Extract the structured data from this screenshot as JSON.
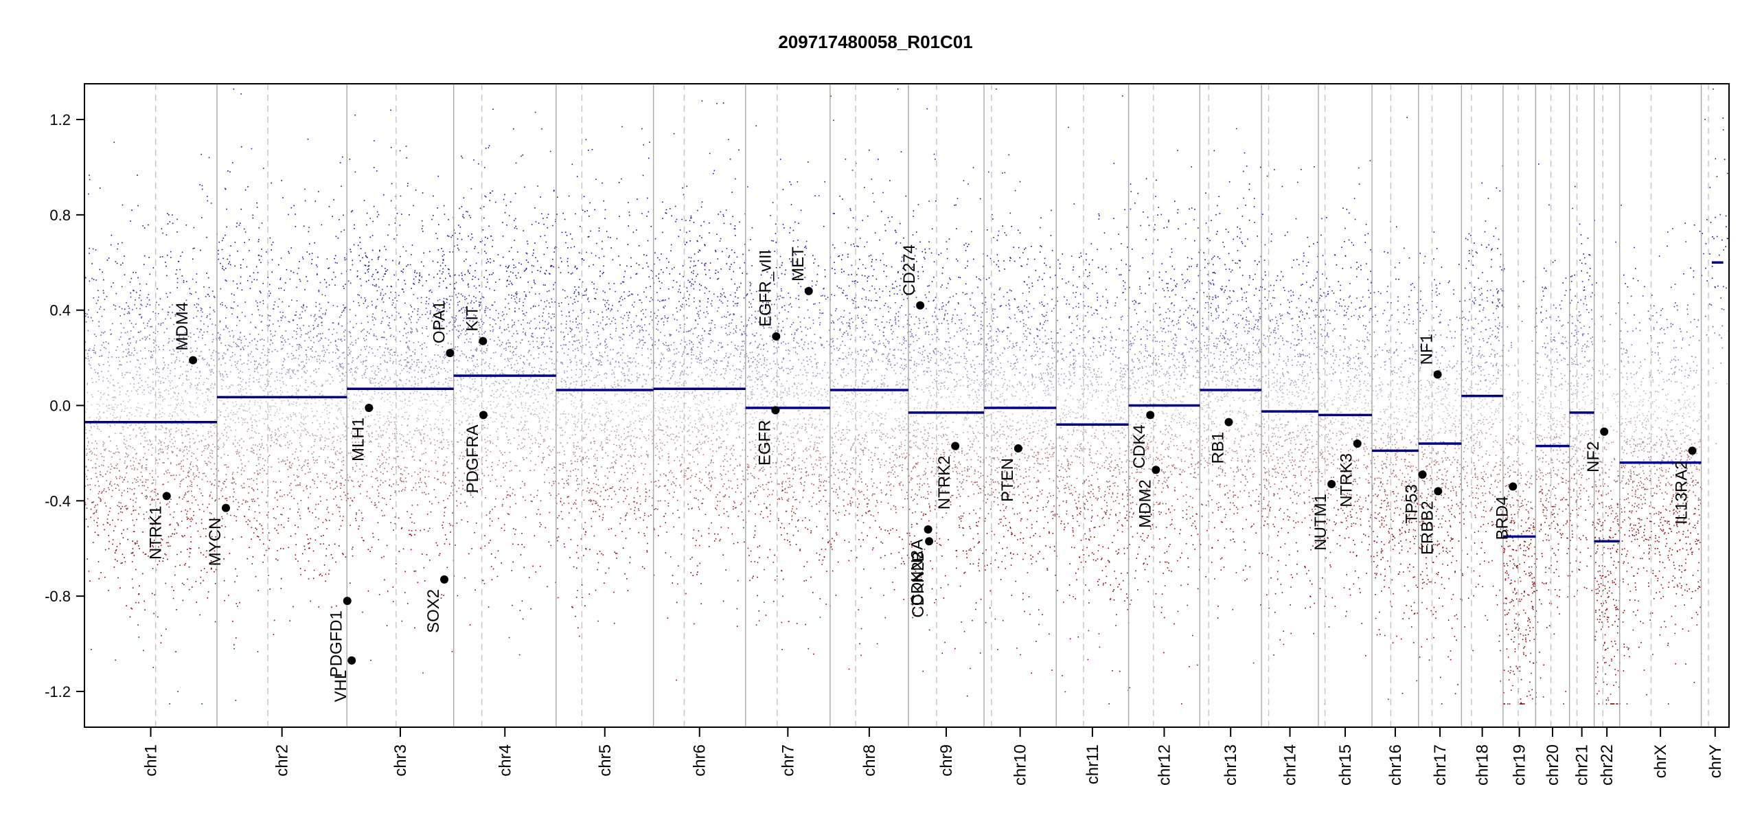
{
  "chart_data": {
    "type": "scatter",
    "title": "209717480058_R01C01",
    "xlabel": "",
    "ylabel": "",
    "ylim": [
      -1.35,
      1.35
    ],
    "yticks": [
      -1.2,
      -0.8,
      -0.4,
      0.0,
      0.4,
      0.8,
      1.2
    ],
    "ytick_labels": [
      "-1.2",
      "-0.8",
      "-0.4",
      "0.0",
      "0.4",
      "0.8",
      "1.2"
    ],
    "genome_length": 1000,
    "colors": {
      "gain": "#1010a0",
      "loss": "#8b0000",
      "neutral": "#c8c8c8",
      "segment": "#00008b",
      "boundary": "#a8a8a8",
      "centromere": "#c4c4c4",
      "axis": "#000000"
    },
    "chromosomes": [
      {
        "name": "chr1",
        "start": 0,
        "end": 80.6,
        "centromere": 43.3,
        "segments": [
          {
            "start": 0,
            "end": 80.6,
            "value": -0.07
          }
        ]
      },
      {
        "name": "chr2",
        "start": 80.6,
        "end": 159.6,
        "centromere": 111.5,
        "segments": [
          {
            "start": 80.6,
            "end": 159.6,
            "value": 0.035
          }
        ]
      },
      {
        "name": "chr3",
        "start": 159.6,
        "end": 224.5,
        "centromere": 189.5,
        "segments": [
          {
            "start": 159.6,
            "end": 224.5,
            "value": 0.07
          }
        ]
      },
      {
        "name": "chr4",
        "start": 224.5,
        "end": 286.8,
        "centromere": 241.6,
        "segments": [
          {
            "start": 224.5,
            "end": 286.8,
            "value": 0.125
          }
        ]
      },
      {
        "name": "chr5",
        "start": 286.8,
        "end": 346.0,
        "centromere": 302.5,
        "segments": [
          {
            "start": 286.8,
            "end": 346.0,
            "value": 0.065
          }
        ]
      },
      {
        "name": "chr6",
        "start": 346.0,
        "end": 402.0,
        "centromere": 364.7,
        "segments": [
          {
            "start": 346.0,
            "end": 402.0,
            "value": 0.07
          }
        ]
      },
      {
        "name": "chr7",
        "start": 402.0,
        "end": 453.4,
        "centromere": 421.2,
        "segments": [
          {
            "start": 402.0,
            "end": 453.4,
            "value": -0.01
          }
        ]
      },
      {
        "name": "chr8",
        "start": 453.4,
        "end": 501.0,
        "centromere": 468.9,
        "segments": [
          {
            "start": 453.4,
            "end": 501.0,
            "value": 0.065
          }
        ]
      },
      {
        "name": "chr9",
        "start": 501.0,
        "end": 547.0,
        "centromere": 518.1,
        "segments": [
          {
            "start": 501.0,
            "end": 547.0,
            "value": -0.03
          }
        ]
      },
      {
        "name": "chr10",
        "start": 547.0,
        "end": 590.9,
        "centromere": 551.5,
        "segments": [
          {
            "start": 547.0,
            "end": 590.9,
            "value": -0.01
          }
        ]
      },
      {
        "name": "chr11",
        "start": 590.9,
        "end": 634.9,
        "centromere": 607.5,
        "segments": [
          {
            "start": 590.9,
            "end": 634.9,
            "value": -0.08
          }
        ]
      },
      {
        "name": "chr12",
        "start": 634.9,
        "end": 678.2,
        "centromere": 650.0,
        "segments": [
          {
            "start": 634.9,
            "end": 678.2,
            "value": 0.0
          }
        ]
      },
      {
        "name": "chr13",
        "start": 678.2,
        "end": 715.7,
        "centromere": 683.6,
        "segments": [
          {
            "start": 678.2,
            "end": 715.7,
            "value": 0.065
          }
        ]
      },
      {
        "name": "chr14",
        "start": 715.7,
        "end": 750.3,
        "centromere": 720.1,
        "segments": [
          {
            "start": 715.7,
            "end": 750.3,
            "value": -0.025
          }
        ]
      },
      {
        "name": "chr15",
        "start": 750.3,
        "end": 782.9,
        "centromere": 754.3,
        "segments": [
          {
            "start": 750.3,
            "end": 782.9,
            "value": -0.04
          }
        ]
      },
      {
        "name": "chr16",
        "start": 782.9,
        "end": 811.2,
        "centromere": 794.3,
        "segments": [
          {
            "start": 782.9,
            "end": 811.2,
            "value": -0.19
          }
        ]
      },
      {
        "name": "chr17",
        "start": 811.2,
        "end": 837.3,
        "centromere": 819.4,
        "segments": [
          {
            "start": 811.2,
            "end": 837.3,
            "value": -0.16
          }
        ]
      },
      {
        "name": "chr18",
        "start": 837.3,
        "end": 862.6,
        "centromere": 843.4,
        "segments": [
          {
            "start": 837.3,
            "end": 862.6,
            "value": 0.04
          }
        ]
      },
      {
        "name": "chr19",
        "start": 862.6,
        "end": 882.4,
        "centromere": 871.8,
        "segments": [
          {
            "start": 862.6,
            "end": 870.6,
            "value": -0.55
          },
          {
            "start": 870.6,
            "end": 882.4,
            "value": -0.55
          }
        ]
      },
      {
        "name": "chr20",
        "start": 882.4,
        "end": 903.0,
        "centromere": 891.7,
        "segments": [
          {
            "start": 882.4,
            "end": 903.0,
            "value": -0.17
          }
        ]
      },
      {
        "name": "chr21",
        "start": 903.0,
        "end": 918.0,
        "centromere": 907.5,
        "segments": [
          {
            "start": 903.0,
            "end": 918.0,
            "value": -0.03
          }
        ]
      },
      {
        "name": "chr22",
        "start": 918.0,
        "end": 933.5,
        "centromere": 923.3,
        "segments": [
          {
            "start": 918.0,
            "end": 922.0,
            "value": -0.57
          },
          {
            "start": 922.0,
            "end": 933.5,
            "value": -0.57
          }
        ]
      },
      {
        "name": "chrX",
        "start": 933.5,
        "end": 983.1,
        "centromere": 952.6,
        "segments": [
          {
            "start": 933.5,
            "end": 983.1,
            "value": -0.24
          }
        ]
      },
      {
        "name": "chrY",
        "start": 983.1,
        "end": 1000.0,
        "centromere": 987.5,
        "segments": [
          {
            "start": 989.5,
            "end": 996.5,
            "value": 0.6
          }
        ]
      }
    ],
    "genes": [
      {
        "name": "NTRK1",
        "pos": 50.0,
        "value": -0.38
      },
      {
        "name": "MDM4",
        "pos": 66.0,
        "value": 0.19
      },
      {
        "name": "MYCN",
        "pos": 86.0,
        "value": -0.43
      },
      {
        "name": "PDGFD1",
        "pos": 159.8,
        "value": -0.82
      },
      {
        "name": "VHL",
        "pos": 162.5,
        "value": -1.07
      },
      {
        "name": "MLH1",
        "pos": 173.0,
        "value": -0.01
      },
      {
        "name": "SOX2",
        "pos": 218.8,
        "value": -0.73
      },
      {
        "name": "OPA1",
        "pos": 222.3,
        "value": 0.22
      },
      {
        "name": "KIT",
        "pos": 242.3,
        "value": 0.27
      },
      {
        "name": "PDGFRA",
        "pos": 242.6,
        "value": -0.04
      },
      {
        "name": "EGFR",
        "pos": 420.2,
        "value": -0.02
      },
      {
        "name": "EGFR_vIII",
        "pos": 420.6,
        "value": 0.29
      },
      {
        "name": "MET",
        "pos": 440.4,
        "value": 0.48
      },
      {
        "name": "CD274",
        "pos": 508.2,
        "value": 0.42
      },
      {
        "name": "CDKN2A",
        "pos": 513.0,
        "value": -0.52
      },
      {
        "name": "CDKN2B",
        "pos": 513.6,
        "value": -0.57
      },
      {
        "name": "NTRK2",
        "pos": 529.5,
        "value": -0.17
      },
      {
        "name": "PTEN",
        "pos": 567.8,
        "value": -0.18
      },
      {
        "name": "MDM2",
        "pos": 651.5,
        "value": -0.27
      },
      {
        "name": "CDK4",
        "pos": 648.1,
        "value": -0.04
      },
      {
        "name": "RB1",
        "pos": 695.8,
        "value": -0.07
      },
      {
        "name": "NUTM1",
        "pos": 758.3,
        "value": -0.33
      },
      {
        "name": "NTRK3",
        "pos": 774.0,
        "value": -0.16
      },
      {
        "name": "TP53",
        "pos": 813.6,
        "value": -0.29
      },
      {
        "name": "NF1",
        "pos": 822.8,
        "value": 0.13
      },
      {
        "name": "ERBB2",
        "pos": 823.1,
        "value": -0.36
      },
      {
        "name": "BRD4",
        "pos": 868.6,
        "value": -0.34
      },
      {
        "name": "NF2",
        "pos": 924.1,
        "value": -0.11
      },
      {
        "name": "IL13RA2",
        "pos": 977.7,
        "value": -0.19
      }
    ]
  }
}
